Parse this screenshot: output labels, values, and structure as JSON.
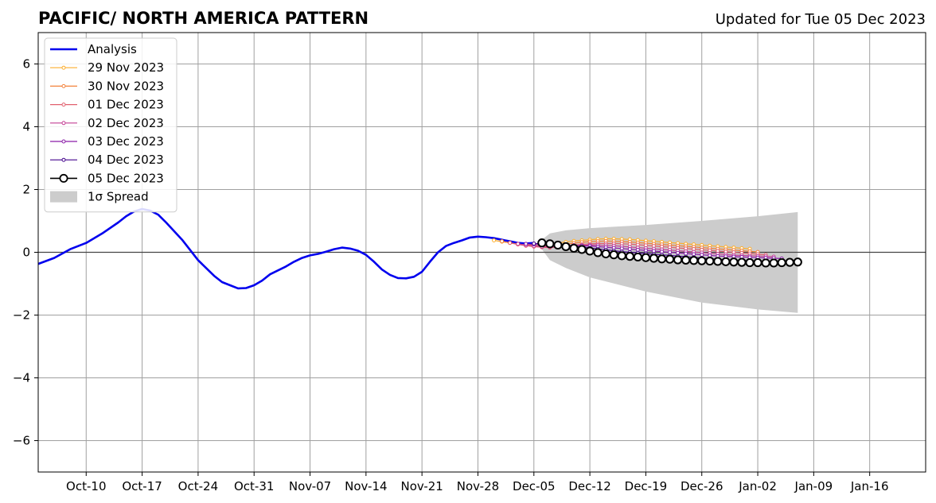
{
  "chart_data": {
    "type": "line",
    "title": "PACIFIC/ NORTH AMERICA PATTERN",
    "subtitle": "Updated for Tue 05 Dec 2023",
    "xlim": [
      "2023-10-04",
      "2024-01-23"
    ],
    "ylim": [
      -7,
      7
    ],
    "x_ticks": [
      {
        "date": "2023-10-10",
        "label": "Oct-10"
      },
      {
        "date": "2023-10-17",
        "label": "Oct-17"
      },
      {
        "date": "2023-10-24",
        "label": "Oct-24"
      },
      {
        "date": "2023-10-31",
        "label": "Oct-31"
      },
      {
        "date": "2023-11-07",
        "label": "Nov-07"
      },
      {
        "date": "2023-11-14",
        "label": "Nov-14"
      },
      {
        "date": "2023-11-21",
        "label": "Nov-21"
      },
      {
        "date": "2023-11-28",
        "label": "Nov-28"
      },
      {
        "date": "2023-12-05",
        "label": "Dec-05"
      },
      {
        "date": "2023-12-12",
        "label": "Dec-12"
      },
      {
        "date": "2023-12-19",
        "label": "Dec-19"
      },
      {
        "date": "2023-12-26",
        "label": "Dec-26"
      },
      {
        "date": "2024-01-02",
        "label": "Jan-02"
      },
      {
        "date": "2024-01-09",
        "label": "Jan-09"
      },
      {
        "date": "2024-01-16",
        "label": "Jan-16"
      }
    ],
    "y_ticks": [
      {
        "value": 6,
        "label": "6"
      },
      {
        "value": 4,
        "label": "4"
      },
      {
        "value": 2,
        "label": "2"
      },
      {
        "value": 0,
        "label": "0"
      },
      {
        "value": -2,
        "label": "−2"
      },
      {
        "value": -4,
        "label": "−4"
      },
      {
        "value": -6,
        "label": "−6"
      }
    ],
    "grid": true,
    "legend_position": "top-left",
    "analysis": {
      "name": "Analysis",
      "color": "#0000ee",
      "points": [
        [
          "2023-10-04",
          -0.37
        ],
        [
          "2023-10-06",
          -0.18
        ],
        [
          "2023-10-08",
          0.1
        ],
        [
          "2023-10-10",
          0.3
        ],
        [
          "2023-10-12",
          0.6
        ],
        [
          "2023-10-14",
          0.95
        ],
        [
          "2023-10-15",
          1.15
        ],
        [
          "2023-10-16",
          1.3
        ],
        [
          "2023-10-17",
          1.38
        ],
        [
          "2023-10-18",
          1.33
        ],
        [
          "2023-10-19",
          1.2
        ],
        [
          "2023-10-20",
          0.95
        ],
        [
          "2023-10-22",
          0.4
        ],
        [
          "2023-10-24",
          -0.25
        ],
        [
          "2023-10-26",
          -0.75
        ],
        [
          "2023-10-27",
          -0.95
        ],
        [
          "2023-10-28",
          -1.05
        ],
        [
          "2023-10-29",
          -1.15
        ],
        [
          "2023-10-30",
          -1.14
        ],
        [
          "2023-10-31",
          -1.05
        ],
        [
          "2023-11-01",
          -0.9
        ],
        [
          "2023-11-02",
          -0.7
        ],
        [
          "2023-11-04",
          -0.45
        ],
        [
          "2023-11-05",
          -0.3
        ],
        [
          "2023-11-06",
          -0.18
        ],
        [
          "2023-11-07",
          -0.1
        ],
        [
          "2023-11-08",
          -0.05
        ],
        [
          "2023-11-09",
          0.02
        ],
        [
          "2023-11-10",
          0.1
        ],
        [
          "2023-11-11",
          0.15
        ],
        [
          "2023-11-12",
          0.12
        ],
        [
          "2023-11-13",
          0.05
        ],
        [
          "2023-11-14",
          -0.08
        ],
        [
          "2023-11-15",
          -0.3
        ],
        [
          "2023-11-16",
          -0.55
        ],
        [
          "2023-11-17",
          -0.72
        ],
        [
          "2023-11-18",
          -0.82
        ],
        [
          "2023-11-19",
          -0.83
        ],
        [
          "2023-11-20",
          -0.78
        ],
        [
          "2023-11-21",
          -0.62
        ],
        [
          "2023-11-22",
          -0.3
        ],
        [
          "2023-11-23",
          0.0
        ],
        [
          "2023-11-24",
          0.2
        ],
        [
          "2023-11-25",
          0.3
        ],
        [
          "2023-11-26",
          0.38
        ],
        [
          "2023-11-27",
          0.47
        ],
        [
          "2023-11-28",
          0.5
        ],
        [
          "2023-11-29",
          0.48
        ],
        [
          "2023-11-30",
          0.45
        ],
        [
          "2023-12-01",
          0.4
        ],
        [
          "2023-12-02",
          0.35
        ],
        [
          "2023-12-03",
          0.3
        ],
        [
          "2023-12-04",
          0.28
        ],
        [
          "2023-12-05",
          0.3
        ]
      ]
    },
    "forecasts": [
      {
        "name": "29 Nov 2023",
        "color": "#fcae2e",
        "start": "2023-11-30",
        "values": [
          0.38,
          0.34,
          0.3,
          0.26,
          0.24,
          0.23,
          0.24,
          0.27,
          0.3,
          0.33,
          0.36,
          0.38,
          0.4,
          0.42,
          0.43,
          0.43,
          0.42,
          0.41,
          0.39,
          0.37,
          0.35,
          0.33,
          0.31,
          0.29,
          0.27,
          0.25,
          0.23,
          0.21,
          0.19,
          0.17,
          0.15,
          0.13,
          0.11
        ]
      },
      {
        "name": "30 Nov 2023",
        "color": "#f3813a",
        "start": "2023-12-01",
        "values": [
          0.35,
          0.3,
          0.26,
          0.22,
          0.2,
          0.19,
          0.2,
          0.23,
          0.26,
          0.29,
          0.32,
          0.34,
          0.35,
          0.36,
          0.35,
          0.34,
          0.33,
          0.31,
          0.29,
          0.27,
          0.25,
          0.23,
          0.21,
          0.19,
          0.17,
          0.15,
          0.13,
          0.11,
          0.09,
          0.07,
          0.05,
          0.03,
          0.01
        ]
      },
      {
        "name": "01 Dec 2023",
        "color": "#e1606e",
        "start": "2023-12-02",
        "values": [
          0.3,
          0.25,
          0.21,
          0.18,
          0.16,
          0.15,
          0.17,
          0.2,
          0.23,
          0.25,
          0.27,
          0.28,
          0.28,
          0.28,
          0.27,
          0.26,
          0.24,
          0.22,
          0.2,
          0.18,
          0.16,
          0.14,
          0.12,
          0.1,
          0.08,
          0.06,
          0.04,
          0.02,
          0.0,
          -0.02,
          -0.04,
          -0.06,
          -0.08
        ]
      },
      {
        "name": "02 Dec 2023",
        "color": "#c43f94",
        "start": "2023-12-03",
        "values": [
          0.27,
          0.23,
          0.2,
          0.18,
          0.17,
          0.17,
          0.19,
          0.21,
          0.22,
          0.23,
          0.23,
          0.22,
          0.21,
          0.19,
          0.17,
          0.15,
          0.13,
          0.11,
          0.09,
          0.07,
          0.05,
          0.03,
          0.01,
          -0.01,
          -0.03,
          -0.05,
          -0.07,
          -0.09,
          -0.1,
          -0.11,
          -0.12,
          -0.13,
          -0.14
        ]
      },
      {
        "name": "03 Dec 2023",
        "color": "#8a1ca8",
        "start": "2023-12-04",
        "values": [
          0.27,
          0.25,
          0.23,
          0.22,
          0.22,
          0.22,
          0.22,
          0.21,
          0.2,
          0.18,
          0.16,
          0.14,
          0.12,
          0.1,
          0.08,
          0.06,
          0.04,
          0.02,
          0.0,
          -0.02,
          -0.04,
          -0.06,
          -0.08,
          -0.1,
          -0.12,
          -0.13,
          -0.14,
          -0.15,
          -0.16,
          -0.17,
          -0.18,
          -0.19,
          -0.2
        ]
      },
      {
        "name": "04 Dec 2023",
        "color": "#45048d",
        "start": "2023-12-05",
        "values": [
          0.28,
          0.27,
          0.26,
          0.24,
          0.22,
          0.2,
          0.17,
          0.14,
          0.11,
          0.08,
          0.05,
          0.02,
          0.0,
          -0.02,
          -0.04,
          -0.06,
          -0.08,
          -0.1,
          -0.12,
          -0.14,
          -0.16,
          -0.18,
          -0.2,
          -0.22,
          -0.24,
          -0.25,
          -0.26,
          -0.27,
          -0.28,
          -0.29,
          -0.3,
          -0.31,
          -0.32
        ]
      },
      {
        "name": "05 Dec 2023",
        "color": "#000000",
        "start": "2023-12-06",
        "values": [
          0.3,
          0.27,
          0.23,
          0.18,
          0.13,
          0.09,
          0.04,
          -0.01,
          -0.05,
          -0.08,
          -0.11,
          -0.13,
          -0.15,
          -0.17,
          -0.19,
          -0.21,
          -0.22,
          -0.24,
          -0.25,
          -0.26,
          -0.27,
          -0.28,
          -0.29,
          -0.3,
          -0.31,
          -0.32,
          -0.33,
          -0.33,
          -0.34,
          -0.34,
          -0.33,
          -0.32,
          -0.31
        ]
      }
    ],
    "spread": {
      "name": "1σ Spread",
      "color": "#cccccc",
      "upper": [
        [
          "2023-12-06",
          0.4
        ],
        [
          "2023-12-07",
          0.6
        ],
        [
          "2023-12-09",
          0.7
        ],
        [
          "2023-12-12",
          0.77
        ],
        [
          "2023-12-19",
          0.87
        ],
        [
          "2023-12-26",
          1.0
        ],
        [
          "2024-01-02",
          1.15
        ],
        [
          "2024-01-07",
          1.28
        ]
      ],
      "lower": [
        [
          "2023-12-06",
          0.1
        ],
        [
          "2023-12-07",
          -0.25
        ],
        [
          "2023-12-09",
          -0.5
        ],
        [
          "2023-12-12",
          -0.8
        ],
        [
          "2023-12-19",
          -1.25
        ],
        [
          "2023-12-26",
          -1.6
        ],
        [
          "2024-01-02",
          -1.82
        ],
        [
          "2024-01-07",
          -1.93
        ]
      ]
    }
  }
}
